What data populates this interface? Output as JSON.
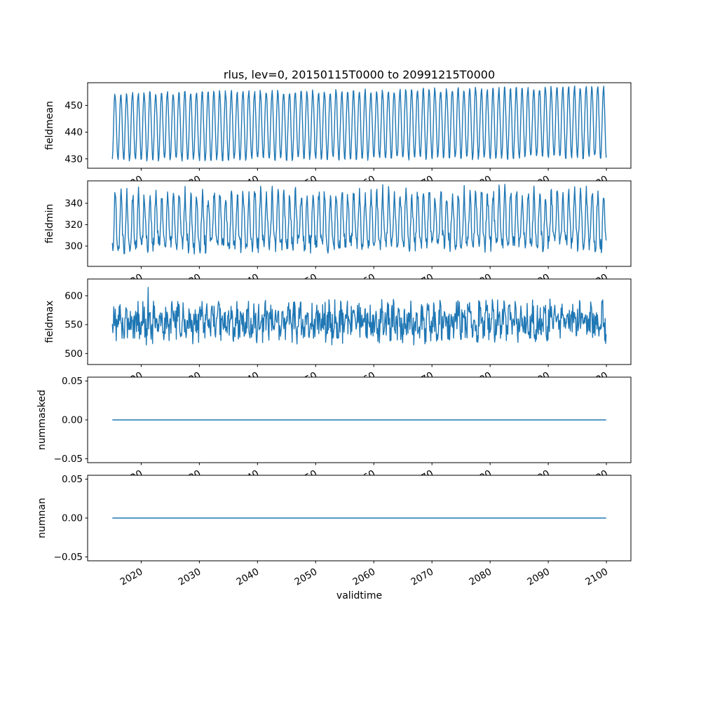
{
  "figure": {
    "background": "#ffffff",
    "line_color": "#1f77b4",
    "axes_edge_color": "#000000",
    "text_color": "#000000"
  },
  "chart_data": {
    "type": "line",
    "title": "rlus, lev=0, 20150115T0000 to 20991215T0000",
    "xlabel": "validtime",
    "x_start": 2015.042,
    "x_end": 2099.958,
    "points_per_year": 12,
    "xlim": [
      2010.79,
      2104.21
    ],
    "xticks": [
      2020,
      2030,
      2040,
      2050,
      2060,
      2070,
      2080,
      2090,
      2100
    ],
    "xtick_labels": [
      "2020",
      "2030",
      "2040",
      "2050",
      "2060",
      "2070",
      "2080",
      "2090",
      "2100"
    ],
    "xtick_rotation": 30,
    "grid": false,
    "legend": "none",
    "subplots": [
      {
        "name": "fieldmean",
        "ylabel": "fieldmean",
        "ylim": [
          426.5,
          458.5
        ],
        "ytick_values": [
          430,
          440,
          450
        ],
        "ytick_labels": [
          "430",
          "440",
          "450"
        ],
        "series": {
          "kind": "seasonal",
          "base": 442.0,
          "base_trend": 0.02,
          "amplitude": 12.5,
          "amplitude_trend": 0.008,
          "noise": 1.0,
          "phase": 0.25,
          "seed": 11,
          "approx_min": 429,
          "approx_max": 457
        }
      },
      {
        "name": "fieldmin",
        "ylabel": "fieldmin",
        "ylim": [
          281,
          361
        ],
        "ytick_values": [
          300,
          320,
          340
        ],
        "ytick_labels": [
          "300",
          "320",
          "340"
        ],
        "series": {
          "kind": "seasonal",
          "base": 320.0,
          "base_trend": 0.02,
          "amplitude": 24.0,
          "amplitude_trend": 0.0,
          "harmonic2": 5.0,
          "noise": 8.0,
          "phase": 0.3,
          "seed": 22,
          "approx_min": 285,
          "approx_max": 357
        }
      },
      {
        "name": "fieldmax",
        "ylabel": "fieldmax",
        "ylim": [
          481,
          629
        ],
        "ytick_values": [
          500,
          550,
          600
        ],
        "ytick_labels": [
          "500",
          "550",
          "600"
        ],
        "series": {
          "kind": "seasonal",
          "base": 553.0,
          "base_trend": 0.03,
          "amplitude": 13.0,
          "amplitude_trend": 0.0,
          "noise": 27.0,
          "spike_prob": 0.02,
          "spike_size": 28.0,
          "phase": 0.1,
          "seed": 33,
          "approx_min": 490,
          "approx_max": 622
        }
      },
      {
        "name": "nummasked",
        "ylabel": "nummasked",
        "ylim": [
          -0.055,
          0.055
        ],
        "ytick_values": [
          -0.05,
          0.0,
          0.05
        ],
        "ytick_labels": [
          "−0.05",
          "0.00",
          "0.05"
        ],
        "series": {
          "kind": "constant",
          "value": 0.0
        }
      },
      {
        "name": "numnan",
        "ylabel": "numnan",
        "ylim": [
          -0.055,
          0.055
        ],
        "ytick_values": [
          -0.05,
          0.0,
          0.05
        ],
        "ytick_labels": [
          "−0.05",
          "0.00",
          "0.05"
        ],
        "series": {
          "kind": "constant",
          "value": 0.0
        }
      }
    ]
  }
}
